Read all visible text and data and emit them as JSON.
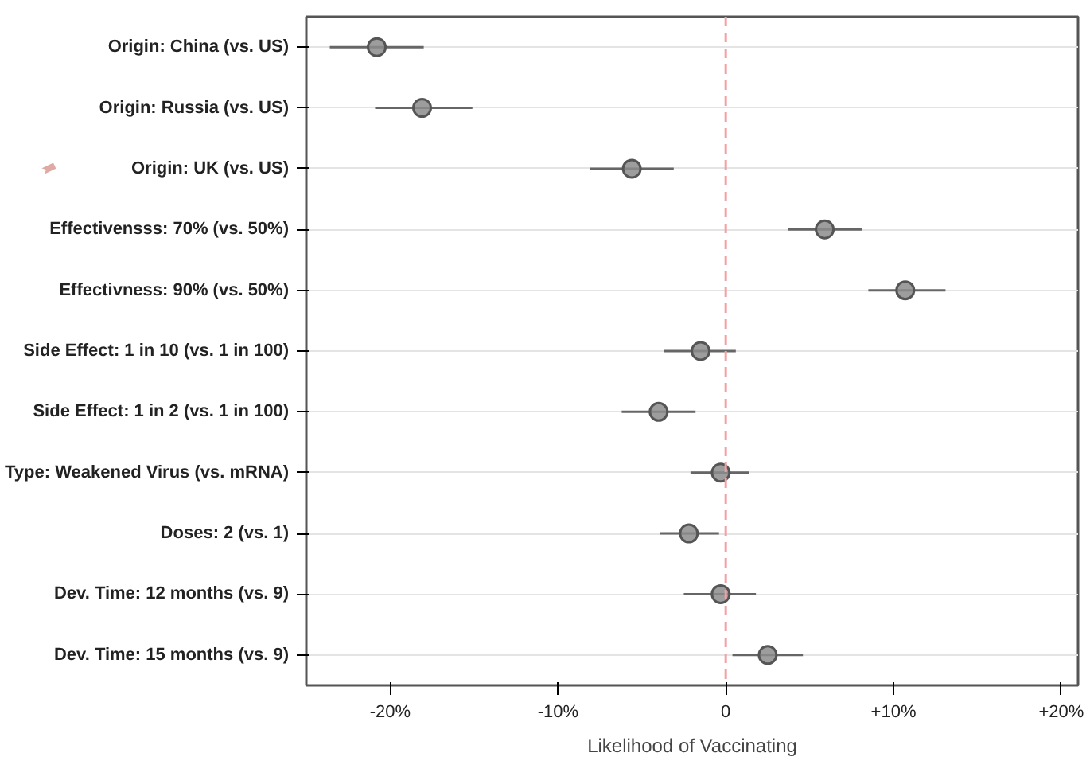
{
  "chart_data": {
    "type": "scatter",
    "orientation": "horizontal",
    "xlabel": "Likelihood of Vaccinating",
    "categories": [
      "Origin: China (vs. US)",
      "Origin: Russia (vs. US)",
      "Origin: UK (vs. US)",
      "Effectivensss: 70% (vs. 50%)",
      "Effectivness: 90% (vs. 50%)",
      "Side Effect: 1 in 10 (vs. 1 in 100)",
      "Side Effect: 1 in 2 (vs. 1 in 100)",
      "Type: Weakened Virus (vs. mRNA)",
      "Doses: 2 (vs. 1)",
      "Dev. Time: 12 months (vs. 9)",
      "Dev. Time: 15 months (vs. 9)"
    ],
    "values": [
      -20.8,
      -18.1,
      -5.6,
      5.9,
      10.7,
      -1.5,
      -4.0,
      -0.3,
      -2.2,
      -0.3,
      2.5
    ],
    "errors": [
      [
        -23.6,
        -18.0
      ],
      [
        -20.9,
        -15.1
      ],
      [
        -8.1,
        -3.1
      ],
      [
        3.7,
        8.1
      ],
      [
        8.5,
        13.1
      ],
      [
        -3.7,
        0.6
      ],
      [
        -6.2,
        -1.8
      ],
      [
        -2.1,
        1.4
      ],
      [
        -3.9,
        -0.4
      ],
      [
        -2.5,
        1.8
      ],
      [
        0.4,
        4.6
      ]
    ],
    "color": "#8c8c8c",
    "marker": "circle",
    "grid": "y",
    "xlim": [
      -25,
      21
    ],
    "xticks": [
      {
        "value": -20,
        "label": "-20%"
      },
      {
        "value": -10,
        "label": "-10%"
      },
      0,
      {
        "value": 10,
        "label": "+10%"
      },
      {
        "value": 20,
        "label": "+20%"
      }
    ],
    "ref_lines": [
      {
        "axis": "x",
        "value": 0,
        "color": "#f4a0a0",
        "line_style": "dashed"
      }
    ]
  }
}
